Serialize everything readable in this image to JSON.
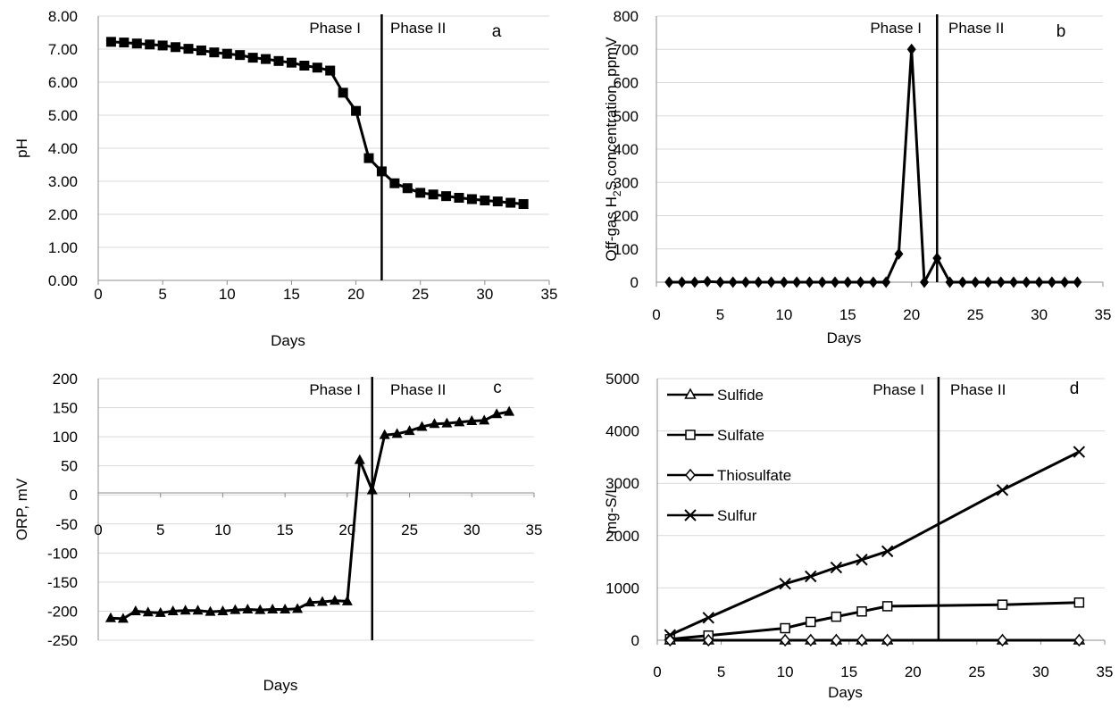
{
  "chart_data": [
    {
      "id": "a",
      "type": "line",
      "panel_label": "a",
      "ylabel": "pH",
      "xlabel": "Days",
      "xlim": [
        0,
        35
      ],
      "ylim": [
        0,
        8
      ],
      "xticks": [
        "0",
        "5",
        "10",
        "15",
        "20",
        "25",
        "30",
        "35"
      ],
      "yticks": [
        "0.00",
        "1.00",
        "2.00",
        "3.00",
        "4.00",
        "5.00",
        "6.00",
        "7.00",
        "8.00"
      ],
      "grid": true,
      "phase_line_x": 22,
      "phase_labels": [
        "Phase I",
        "Phase II"
      ],
      "series": [
        {
          "marker": "square",
          "x": [
            1,
            2,
            3,
            4,
            5,
            6,
            7,
            8,
            9,
            10,
            11,
            12,
            13,
            14,
            15,
            16,
            17,
            18,
            19,
            20,
            21,
            22,
            23,
            24,
            25,
            26,
            27,
            28,
            29,
            30,
            31,
            32,
            33
          ],
          "y": [
            7.22,
            7.2,
            7.17,
            7.14,
            7.11,
            7.06,
            7.01,
            6.96,
            6.9,
            6.86,
            6.82,
            6.74,
            6.7,
            6.64,
            6.59,
            6.5,
            6.44,
            6.35,
            5.68,
            5.13,
            3.7,
            3.3,
            2.94,
            2.79,
            2.65,
            2.6,
            2.55,
            2.5,
            2.46,
            2.42,
            2.39,
            2.35,
            2.31
          ]
        }
      ]
    },
    {
      "id": "b",
      "type": "line",
      "panel_label": "b",
      "ylabel_main": "Off-gas H",
      "ylabel_sub": "2",
      "ylabel_rest": "S concentration, ppmV",
      "xlabel": "Days",
      "xlim": [
        0,
        35
      ],
      "ylim": [
        0,
        800
      ],
      "xticks": [
        "0",
        "5",
        "10",
        "15",
        "20",
        "25",
        "30",
        "35"
      ],
      "yticks": [
        "0",
        "100",
        "200",
        "300",
        "400",
        "500",
        "600",
        "700",
        "800"
      ],
      "grid": true,
      "phase_line_x": 22,
      "phase_labels": [
        "Phase I",
        "Phase II"
      ],
      "series": [
        {
          "marker": "diamond",
          "x": [
            1,
            2,
            3,
            4,
            5,
            6,
            7,
            8,
            9,
            10,
            11,
            12,
            13,
            14,
            15,
            16,
            17,
            18,
            19,
            20,
            21,
            22,
            23,
            24,
            25,
            26,
            27,
            28,
            29,
            30,
            31,
            32,
            33
          ],
          "y": [
            0,
            0,
            0,
            2,
            0,
            0,
            0,
            0,
            0,
            0,
            0,
            0,
            0,
            0,
            0,
            0,
            0,
            0,
            85,
            700,
            0,
            72,
            0,
            0,
            0,
            0,
            0,
            0,
            0,
            0,
            0,
            0,
            0
          ]
        }
      ]
    },
    {
      "id": "c",
      "type": "line",
      "panel_label": "c",
      "ylabel": "ORP, mV",
      "xlabel": "Days",
      "xlim": [
        0,
        35
      ],
      "ylim": [
        -250,
        200
      ],
      "xticks": [
        "0",
        "5",
        "10",
        "15",
        "20",
        "25",
        "30",
        "35"
      ],
      "yticks": [
        "-250",
        "-200",
        "-150",
        "-100",
        "-50",
        "0",
        "50",
        "100",
        "150",
        "200"
      ],
      "grid": true,
      "phase_line_x": 22,
      "phase_labels": [
        "Phase I",
        "Phase II"
      ],
      "series": [
        {
          "marker": "triangle",
          "x": [
            1,
            2,
            3,
            4,
            5,
            6,
            7,
            8,
            9,
            10,
            11,
            12,
            13,
            14,
            15,
            16,
            17,
            18,
            19,
            20,
            21,
            22,
            23,
            24,
            25,
            26,
            27,
            28,
            29,
            30,
            31,
            32,
            33
          ],
          "y": [
            -212,
            -213,
            -200,
            -202,
            -203,
            -200,
            -199,
            -199,
            -201,
            -200,
            -198,
            -197,
            -198,
            -197,
            -197,
            -196,
            -185,
            -184,
            -182,
            -183,
            60,
            8,
            103,
            105,
            110,
            117,
            122,
            123,
            125,
            127,
            128,
            139,
            143
          ]
        }
      ]
    },
    {
      "id": "d",
      "type": "line",
      "panel_label": "d",
      "ylabel": "mg-S/L",
      "xlabel": "Days",
      "xlim": [
        0,
        35
      ],
      "ylim": [
        0,
        5000
      ],
      "xticks": [
        "0",
        "5",
        "10",
        "15",
        "20",
        "25",
        "30",
        "35"
      ],
      "yticks": [
        "0",
        "1000",
        "2000",
        "3000",
        "4000",
        "5000"
      ],
      "grid": true,
      "legend": "top-left",
      "phase_line_x": 22,
      "phase_labels": [
        "Phase I",
        "Phase II"
      ],
      "series": [
        {
          "name": "Sulfide",
          "marker": "triangle-open",
          "x": [
            1,
            4,
            10,
            12,
            14,
            16,
            18,
            27,
            33
          ],
          "y": [
            0,
            0,
            0,
            0,
            0,
            0,
            0,
            0,
            0
          ]
        },
        {
          "name": "Sulfate",
          "marker": "square-open",
          "x": [
            1,
            4,
            10,
            12,
            14,
            16,
            18,
            27,
            33
          ],
          "y": [
            20,
            90,
            230,
            350,
            450,
            550,
            650,
            680,
            720
          ]
        },
        {
          "name": "Thiosulfate",
          "marker": "diamond-open",
          "x": [
            1,
            4,
            10,
            12,
            14,
            16,
            18,
            27,
            33
          ],
          "y": [
            0,
            0,
            0,
            0,
            0,
            0,
            0,
            0,
            0
          ]
        },
        {
          "name": "Sulfur",
          "marker": "x",
          "x": [
            1,
            4,
            10,
            12,
            14,
            16,
            18,
            27,
            33
          ],
          "y": [
            100,
            430,
            1080,
            1220,
            1390,
            1540,
            1700,
            2870,
            3600
          ]
        }
      ]
    }
  ]
}
